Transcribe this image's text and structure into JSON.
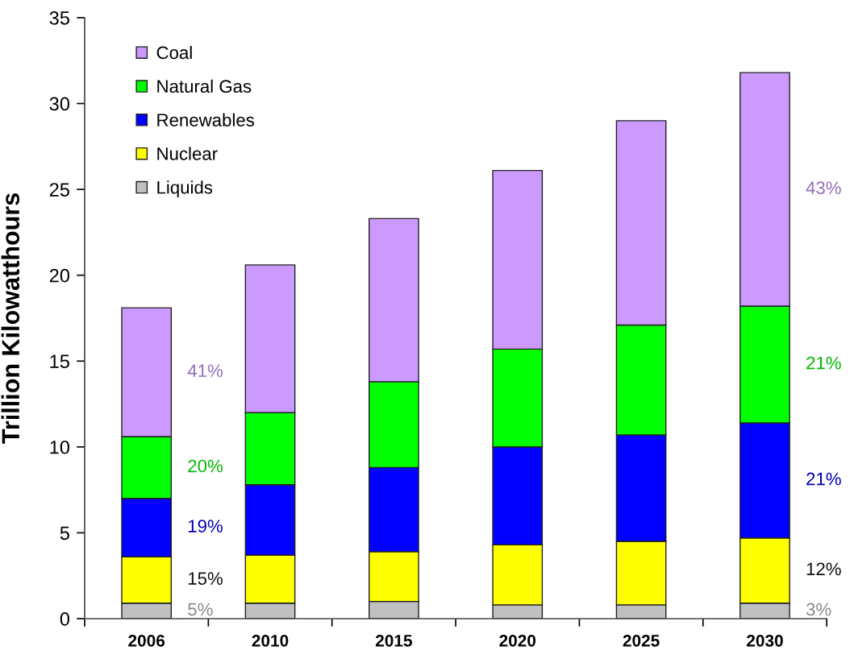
{
  "chart_data": {
    "type": "bar",
    "stacked": true,
    "ylabel": "Trillion Kilowatthours",
    "categories": [
      "2006",
      "2010",
      "2015",
      "2020",
      "2025",
      "2030"
    ],
    "series": [
      {
        "name": "Liquids",
        "color": "#c0c0c0",
        "values": [
          0.9,
          0.9,
          1.0,
          0.8,
          0.8,
          0.9
        ]
      },
      {
        "name": "Nuclear",
        "color": "#ffff00",
        "values": [
          2.7,
          2.8,
          2.9,
          3.5,
          3.7,
          3.8
        ]
      },
      {
        "name": "Renewables",
        "color": "#0000ff",
        "values": [
          3.4,
          4.1,
          4.9,
          5.7,
          6.2,
          6.7
        ]
      },
      {
        "name": "Natural Gas",
        "color": "#00ff00",
        "values": [
          3.6,
          4.2,
          5.0,
          5.7,
          6.4,
          6.8
        ]
      },
      {
        "name": "Coal",
        "color": "#cc99ff",
        "values": [
          7.5,
          8.6,
          9.5,
          10.4,
          11.9,
          13.6
        ]
      }
    ],
    "annotations": [
      "41%",
      "20%",
      "19%",
      "15%",
      "5%",
      "43%",
      "21%",
      "21%",
      "12%",
      "3%"
    ],
    "ylim": [
      0,
      35
    ],
    "yticks": [
      0,
      5,
      10,
      15,
      20,
      25,
      30,
      35
    ],
    "legend": "top left",
    "grid": false
  }
}
